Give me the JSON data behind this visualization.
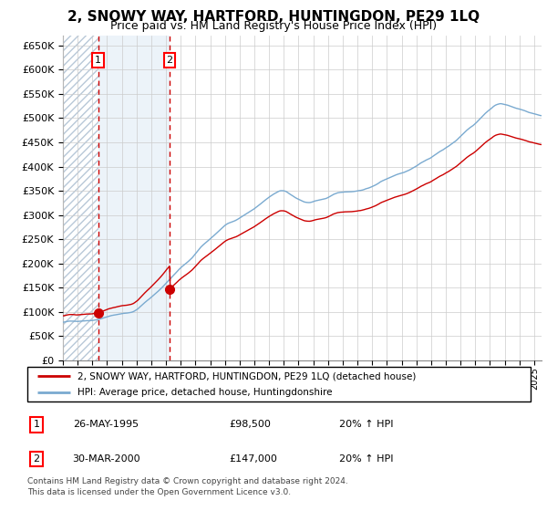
{
  "title": "2, SNOWY WAY, HARTFORD, HUNTINGDON, PE29 1LQ",
  "subtitle": "Price paid vs. HM Land Registry's House Price Index (HPI)",
  "ylabel_ticks": [
    0,
    50000,
    100000,
    150000,
    200000,
    250000,
    300000,
    350000,
    400000,
    450000,
    500000,
    550000,
    600000,
    650000
  ],
  "ylim": [
    0,
    670000
  ],
  "xlim_start": 1993.0,
  "xlim_end": 2025.5,
  "sale1_year": 1995.4,
  "sale1_price": 98500,
  "sale2_year": 2000.25,
  "sale2_price": 147000,
  "hpi_color": "#7aaad0",
  "price_color": "#cc0000",
  "hatch_bg_color": "#e8f0f8",
  "hatch_edge_color": "#b0c8e0",
  "legend_label_price": "2, SNOWY WAY, HARTFORD, HUNTINGDON, PE29 1LQ (detached house)",
  "legend_label_hpi": "HPI: Average price, detached house, Huntingdonshire",
  "sale1_date_str": "26-MAY-1995",
  "sale1_price_str": "£98,500",
  "sale1_hpi_str": "20% ↑ HPI",
  "sale2_date_str": "30-MAR-2000",
  "sale2_price_str": "£147,000",
  "sale2_hpi_str": "20% ↑ HPI",
  "footer1": "Contains HM Land Registry data © Crown copyright and database right 2024.",
  "footer2": "This data is licensed under the Open Government Licence v3.0.",
  "grid_color": "#cccccc",
  "title_fontsize": 11,
  "subtitle_fontsize": 9
}
